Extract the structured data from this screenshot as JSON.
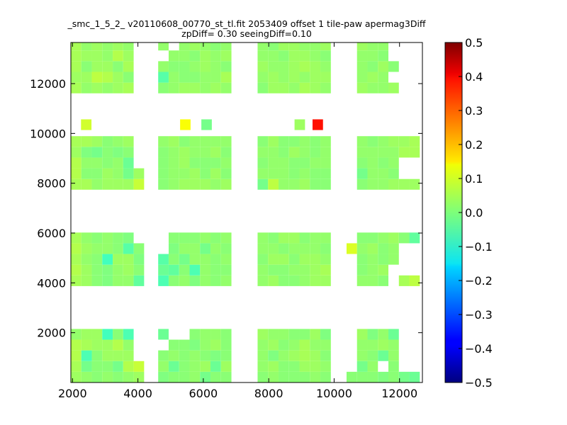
{
  "chart_data": {
    "type": "heatmap",
    "title": "_smc_1_5_2_ v20110608_00770_st_tl.fit 2053409 offset 1 tile-paw apermag3Diff",
    "subtitle": "zpDiff= 0.30 seeingDiff=0.10",
    "xlabel": "",
    "ylabel": "",
    "xlim": [
      1950,
      12700
    ],
    "ylim": [
      0,
      13650
    ],
    "x_ticks": [
      2000,
      4000,
      6000,
      8000,
      10000,
      12000
    ],
    "y_ticks": [
      2000,
      4000,
      6000,
      8000,
      10000,
      12000
    ],
    "x_tick_labels": [
      "2000",
      "4000",
      "6000",
      "8000",
      "10000",
      "12000"
    ],
    "y_tick_labels": [
      "2000",
      "4000",
      "6000",
      "8000",
      "10000",
      "12000"
    ],
    "colorbar": {
      "colormap": "jet",
      "range": [
        -0.5,
        0.5
      ],
      "ticks": [
        0.5,
        0.4,
        0.3,
        0.2,
        0.1,
        0.0,
        -0.1,
        -0.2,
        -0.3,
        -0.4,
        -0.5
      ],
      "tick_labels": [
        "0.5",
        "0.4",
        "0.3",
        "0.2",
        "0.1",
        "0.0",
        "−0.1",
        "−0.2",
        "−0.3",
        "−0.4",
        "−0.5"
      ]
    },
    "cell_width": 320,
    "cell_height": 430,
    "y_origin": 0,
    "column_x_starts": [
      1950,
      2270,
      2590,
      2910,
      3230,
      3550,
      3870,
      4620,
      4940,
      5260,
      5580,
      5900,
      6220,
      6540,
      7660,
      7980,
      8300,
      8620,
      8940,
      9260,
      9580,
      10380,
      10700,
      11020,
      11340,
      11660,
      11980,
      12300
    ],
    "bands": [
      {
        "name": "band-1",
        "start_row": 0,
        "values": [
          [
            0.03,
            0.02,
            0.01,
            0.02,
            0.01,
            0.02,
            0.03,
            0.0,
            0.01,
            0.01,
            0.02,
            -0.01,
            0.01,
            0.01,
            0.01,
            0.02,
            0.01,
            0.01,
            0.01,
            0.02,
            0.01,
            0.01,
            0.01,
            0.01,
            0.0,
            0.01,
            -0.01,
            -0.02
          ],
          [
            0.04,
            -0.01,
            0.01,
            0.01,
            -0.01,
            0.05,
            0.07,
            0.02,
            -0.02,
            0.01,
            0.02,
            0.03,
            -0.02,
            0.03,
            0.02,
            0.03,
            0.01,
            0.01,
            0.03,
            0.03,
            0.02,
            null,
            -0.01,
            0.02,
            null,
            0.01,
            null,
            null
          ],
          [
            0.05,
            -0.05,
            0.01,
            0.03,
            0.03,
            0.03,
            null,
            0.01,
            0.02,
            0.01,
            0.02,
            0.01,
            0.0,
            0.01,
            0.02,
            0.0,
            0.02,
            0.03,
            0.04,
            0.03,
            0.01,
            null,
            0.02,
            0.01,
            -0.02,
            0.02,
            null,
            null
          ],
          [
            0.05,
            0.04,
            0.03,
            0.03,
            0.05,
            0.02,
            null,
            null,
            0.01,
            0.01,
            0.0,
            0.02,
            0.03,
            0.01,
            0.02,
            0.03,
            0.01,
            0.02,
            0.04,
            0.02,
            0.02,
            null,
            0.02,
            0.02,
            0.03,
            0.02,
            null,
            null
          ],
          [
            0.02,
            0.03,
            0.03,
            -0.06,
            0.01,
            -0.05,
            null,
            -0.02,
            null,
            null,
            0.01,
            0.02,
            0.02,
            0.01,
            0.03,
            0.02,
            0.02,
            0.01,
            0.01,
            0.03,
            0.0,
            null,
            0.03,
            0.0,
            0.02,
            -0.02,
            null,
            null
          ]
        ]
      },
      {
        "name": "band-2",
        "start_row": 9,
        "values": [
          [
            0.04,
            0.03,
            0.01,
            0.0,
            0.02,
            0.02,
            -0.03,
            -0.05,
            0.01,
            0.02,
            0.0,
            0.02,
            0.01,
            0.02,
            0.02,
            0.03,
            0.01,
            0.01,
            0.02,
            0.03,
            0.03,
            null,
            0.02,
            0.02,
            0.01,
            null,
            0.04,
            0.06
          ],
          [
            0.05,
            0.03,
            0.01,
            0.0,
            0.02,
            0.03,
            0.01,
            -0.02,
            -0.03,
            0.01,
            -0.05,
            0.02,
            0.01,
            0.01,
            0.02,
            0.01,
            0.01,
            0.02,
            0.02,
            0.03,
            0.04,
            null,
            0.01,
            0.02,
            0.03,
            null,
            null,
            null
          ],
          [
            0.04,
            0.02,
            0.01,
            -0.06,
            0.03,
            0.03,
            0.0,
            -0.04,
            0.01,
            -0.01,
            0.02,
            0.02,
            0.01,
            0.02,
            0.01,
            0.03,
            0.03,
            0.01,
            0.03,
            0.03,
            0.02,
            null,
            0.01,
            0.02,
            0.01,
            0.02,
            null,
            null
          ],
          [
            0.05,
            0.03,
            0.02,
            0.02,
            0.01,
            -0.04,
            0.01,
            null,
            0.0,
            0.02,
            0.02,
            -0.01,
            0.02,
            0.01,
            0.02,
            0.02,
            0.01,
            0.02,
            0.02,
            0.02,
            0.01,
            0.09,
            0.02,
            0.03,
            0.01,
            0.02,
            null,
            null
          ],
          [
            0.04,
            0.02,
            0.01,
            0.02,
            0.01,
            0.0,
            null,
            null,
            0.01,
            0.01,
            0.01,
            0.02,
            0.01,
            0.02,
            0.02,
            0.01,
            0.03,
            0.03,
            0.01,
            0.02,
            0.02,
            null,
            0.01,
            0.01,
            0.02,
            0.03,
            0.01,
            -0.03
          ]
        ]
      },
      {
        "name": "band-3",
        "start_row": 18,
        "values": [
          [
            0.04,
            0.04,
            0.02,
            0.03,
            0.03,
            0.03,
            0.07,
            0.01,
            0.02,
            0.03,
            0.03,
            0.03,
            0.02,
            0.03,
            -0.01,
            0.06,
            0.02,
            0.02,
            0.03,
            0.01,
            0.01,
            null,
            0.01,
            0.02,
            0.02,
            0.03,
            0.03,
            0.03
          ],
          [
            0.05,
            0.01,
            0.01,
            0.03,
            0.02,
            -0.01,
            0.03,
            0.01,
            0.02,
            0.02,
            0.03,
            0.01,
            0.03,
            0.01,
            0.02,
            0.02,
            0.02,
            0.01,
            0.02,
            0.01,
            0.01,
            null,
            -0.01,
            0.02,
            0.02,
            0.01,
            null,
            null
          ],
          [
            0.05,
            0.02,
            0.02,
            0.01,
            0.02,
            -0.02,
            null,
            0.01,
            0.02,
            0.03,
            0.01,
            0.01,
            0.01,
            0.02,
            0.01,
            0.02,
            0.02,
            0.01,
            0.01,
            0.02,
            0.02,
            null,
            0.01,
            0.02,
            0.01,
            0.02,
            null,
            null
          ],
          [
            0.03,
            0.0,
            -0.01,
            0.01,
            0.0,
            0.01,
            null,
            0.01,
            0.02,
            0.03,
            0.02,
            0.02,
            0.03,
            0.01,
            0.02,
            0.02,
            0.01,
            0.03,
            0.02,
            0.01,
            0.02,
            null,
            0.02,
            0.02,
            0.02,
            0.02,
            0.04,
            0.04
          ],
          [
            0.04,
            0.04,
            0.03,
            0.01,
            0.02,
            0.03,
            null,
            0.02,
            0.03,
            0.01,
            0.02,
            0.02,
            0.02,
            0.02,
            0.01,
            0.03,
            0.01,
            0.01,
            0.02,
            0.01,
            0.02,
            null,
            0.02,
            0.01,
            0.02,
            0.03,
            0.03,
            0.04
          ]
        ]
      },
      {
        "name": "band-4",
        "start_row": 27,
        "values": [
          [
            0.04,
            0.02,
            0.03,
            0.02,
            0.03,
            0.04,
            null,
            0.01,
            0.02,
            0.03,
            0.03,
            0.02,
            0.03,
            0.02,
            0.01,
            0.03,
            0.03,
            0.02,
            0.04,
            0.03,
            0.02,
            null,
            0.03,
            0.02,
            0.02,
            0.03,
            null,
            null
          ],
          [
            0.03,
            0.03,
            0.06,
            0.05,
            0.03,
            0.01,
            null,
            -0.04,
            0.02,
            0.01,
            0.01,
            0.02,
            0.02,
            0.04,
            0.02,
            0.03,
            0.02,
            0.03,
            0.02,
            0.03,
            0.03,
            null,
            0.02,
            0.03,
            0.02,
            null,
            null,
            null
          ],
          [
            0.04,
            0.01,
            0.03,
            0.03,
            0.01,
            0.04,
            null,
            0.02,
            0.01,
            0.01,
            0.02,
            0.03,
            0.02,
            0.01,
            0.03,
            0.02,
            0.02,
            0.03,
            0.04,
            0.03,
            0.02,
            null,
            0.02,
            0.01,
            0.03,
            0.01,
            null,
            null
          ],
          [
            0.04,
            0.03,
            0.03,
            0.02,
            0.05,
            0.03,
            null,
            null,
            0.02,
            0.02,
            0.01,
            0.03,
            0.02,
            0.03,
            0.02,
            0.02,
            0.01,
            0.03,
            0.03,
            0.02,
            0.01,
            null,
            0.02,
            0.02,
            0.01,
            null,
            null,
            null
          ],
          [
            0.04,
            0.02,
            0.03,
            0.02,
            0.03,
            0.02,
            null,
            0.02,
            null,
            0.02,
            0.03,
            0.02,
            0.01,
            0.02,
            0.02,
            0.01,
            0.03,
            0.03,
            0.02,
            0.02,
            0.03,
            null,
            0.03,
            0.02,
            0.02,
            null,
            null,
            null
          ],
          [
            0.05,
            0.04,
            0.03,
            0.04,
            0.01,
            0.02,
            null,
            -0.03,
            0.02,
            0.02,
            0.02,
            0.03,
            0.03,
            0.02,
            0.03,
            0.02,
            0.03,
            0.01,
            0.03,
            0.02,
            0.03,
            null,
            0.02,
            0.01,
            0.03,
            0.02,
            null,
            null
          ]
        ]
      }
    ],
    "outliers": [
      {
        "x": 2420,
        "y": 10350,
        "value": 0.08
      },
      {
        "x": 5450,
        "y": 10350,
        "value": 0.12
      },
      {
        "x": 6100,
        "y": 10350,
        "value": -0.01
      },
      {
        "x": 8950,
        "y": 10350,
        "value": 0.03
      },
      {
        "x": 9500,
        "y": 10350,
        "value": 0.36
      }
    ]
  }
}
